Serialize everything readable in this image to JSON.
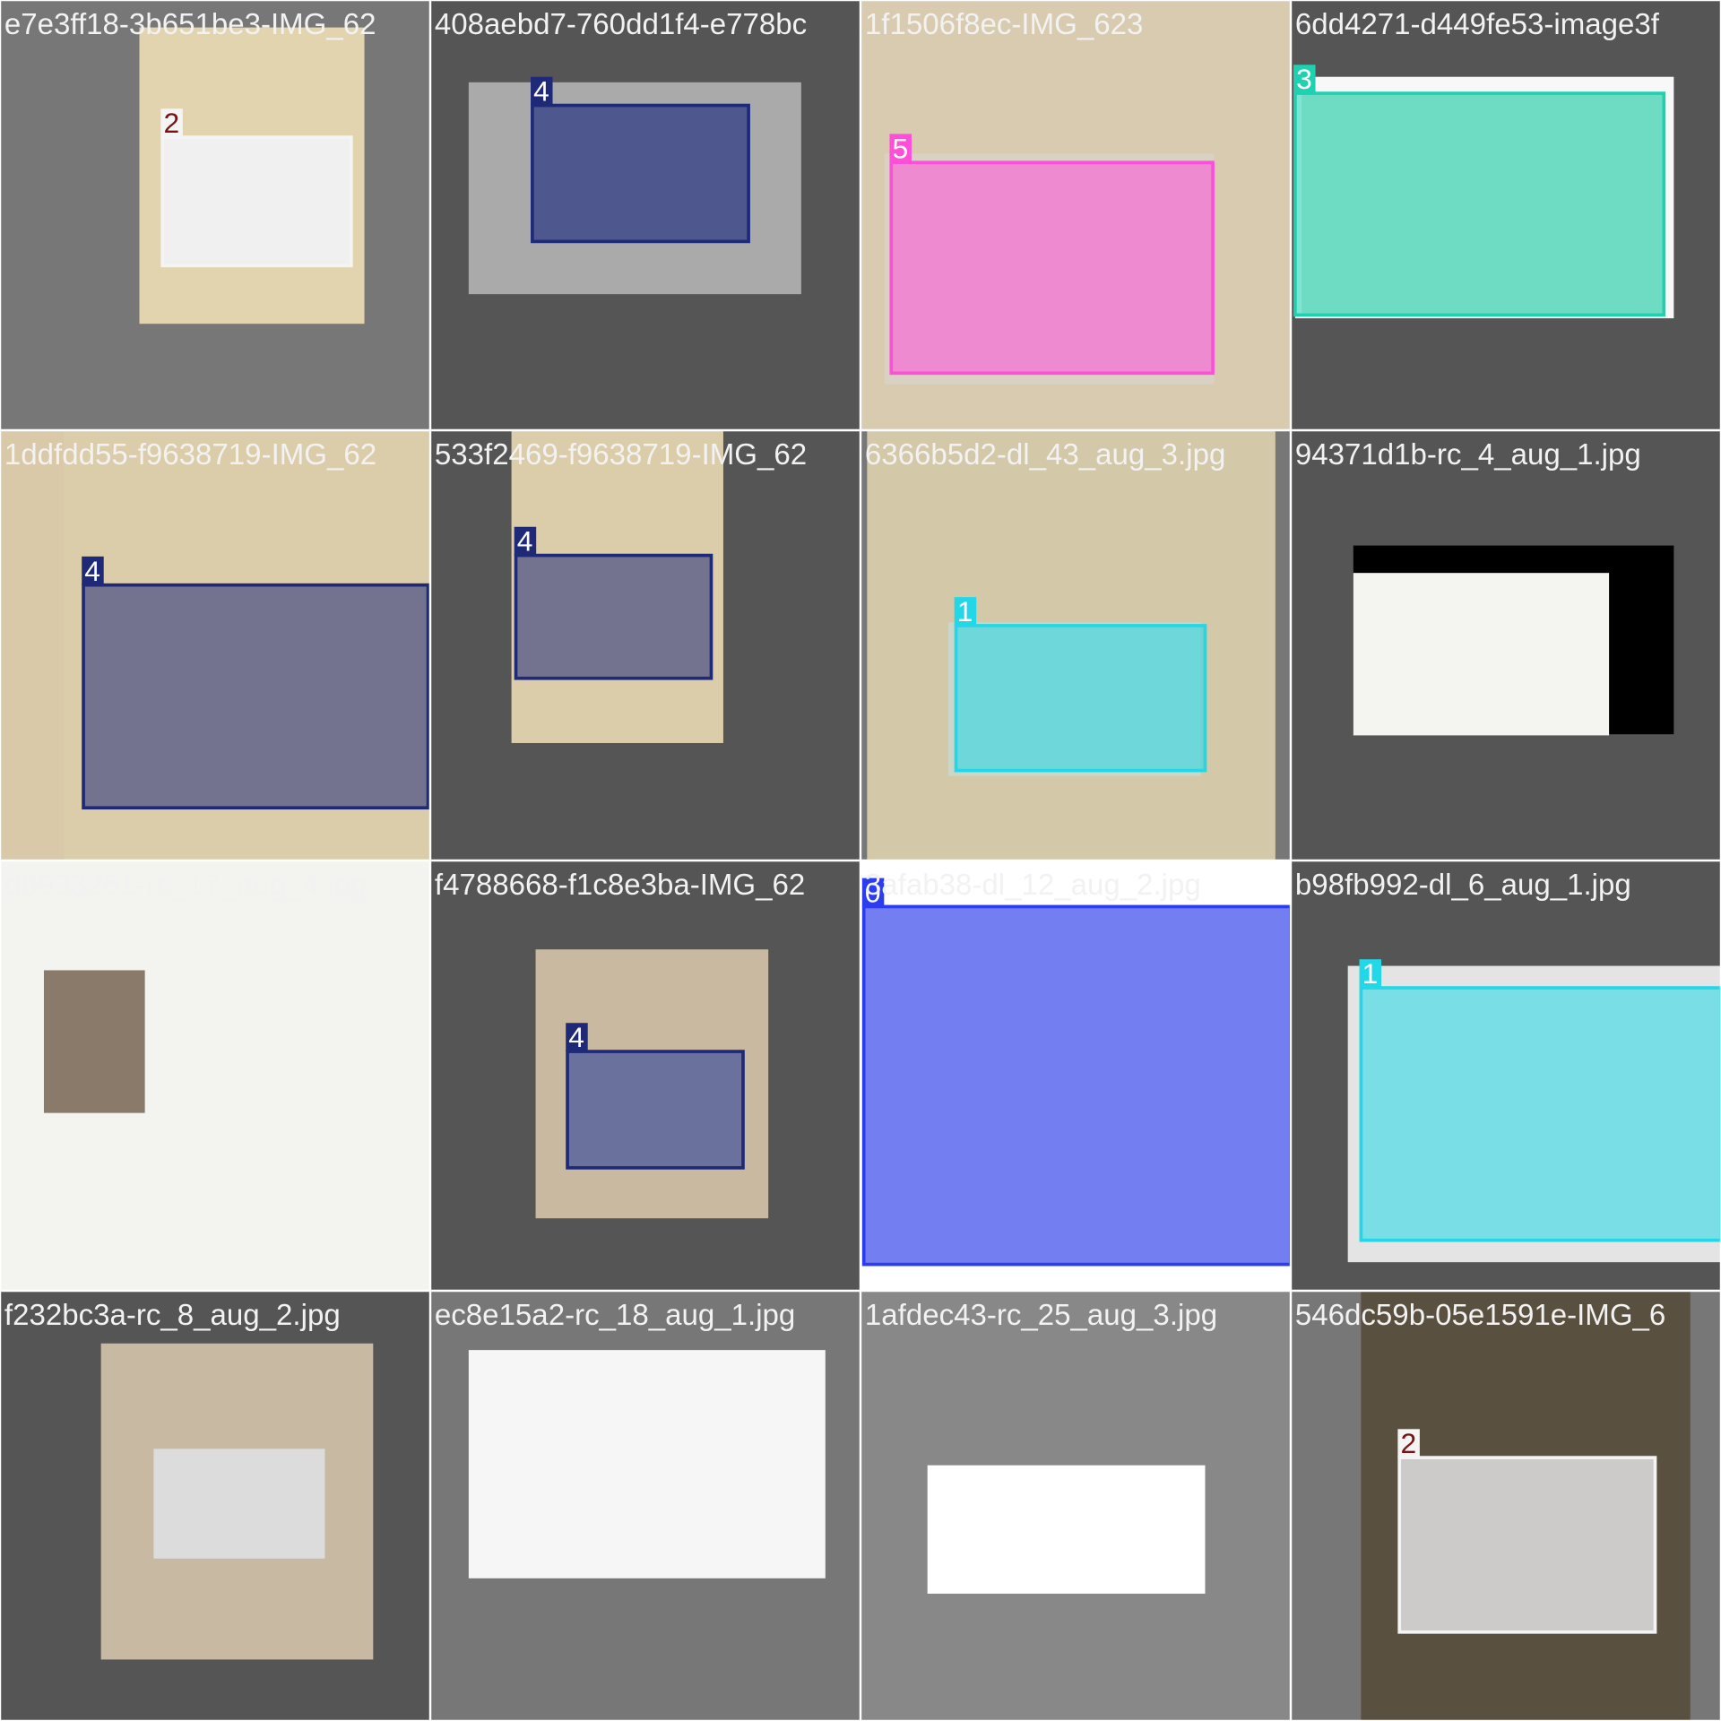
{
  "tiles": [
    {
      "filename": "e7e3ff18-3b651be3-IMG_62",
      "boxes": [
        {
          "class_label": "2",
          "color": "#f4f4f4",
          "label_color": "#7a1414"
        }
      ]
    },
    {
      "filename": "408aebd7-760dd1f4-e778bc",
      "boxes": [
        {
          "class_label": "4",
          "color": "#1e2a78",
          "label_color": "#ffffff"
        }
      ]
    },
    {
      "filename": "1f1506f8ec-IMG_623",
      "boxes": [
        {
          "class_label": "5",
          "color": "#ff4fd8",
          "label_color": "#ffffff"
        }
      ]
    },
    {
      "filename": "6dd4271-d449fe53-image3f",
      "boxes": [
        {
          "class_label": "3",
          "color": "#1fd1b0",
          "label_color": "#ffffff"
        }
      ]
    },
    {
      "filename": "1ddfdd55-f9638719-IMG_62",
      "boxes": [
        {
          "class_label": "4",
          "color": "#1e2a78",
          "label_color": "#ffffff"
        }
      ]
    },
    {
      "filename": "533f2469-f9638719-IMG_62",
      "boxes": [
        {
          "class_label": "4",
          "color": "#1e2a78",
          "label_color": "#ffffff"
        }
      ]
    },
    {
      "filename": "6366b5d2-dl_43_aug_3.jpg",
      "boxes": [
        {
          "class_label": "1",
          "color": "#22d8e8",
          "label_color": "#ffffff"
        }
      ]
    },
    {
      "filename": "94371d1b-rc_4_aug_1.jpg",
      "boxes": []
    },
    {
      "filename": "d6933261-rc_17_aug_4.jpg",
      "boxes": []
    },
    {
      "filename": "f4788668-f1c8e3ba-IMG_62",
      "boxes": [
        {
          "class_label": "4",
          "color": "#1e2a78",
          "label_color": "#ffffff"
        }
      ]
    },
    {
      "filename": "3afab38-dl_12_aug_2.jpg",
      "boxes": [
        {
          "class_label": "0",
          "color": "#2c3cf0",
          "label_color": "#ffffff"
        }
      ]
    },
    {
      "filename": "b98fb992-dl_6_aug_1.jpg",
      "boxes": [
        {
          "class_label": "1",
          "color": "#22d8e8",
          "label_color": "#ffffff"
        }
      ]
    },
    {
      "filename": "f232bc3a-rc_8_aug_2.jpg",
      "boxes": []
    },
    {
      "filename": "ec8e15a2-rc_18_aug_1.jpg",
      "boxes": []
    },
    {
      "filename": "1afdec43-rc_25_aug_3.jpg",
      "boxes": []
    },
    {
      "filename": "546dc59b-05e1591e-IMG_6",
      "boxes": [
        {
          "class_label": "2",
          "color": "#f4f4f4",
          "label_color": "#7a1414"
        }
      ]
    }
  ]
}
